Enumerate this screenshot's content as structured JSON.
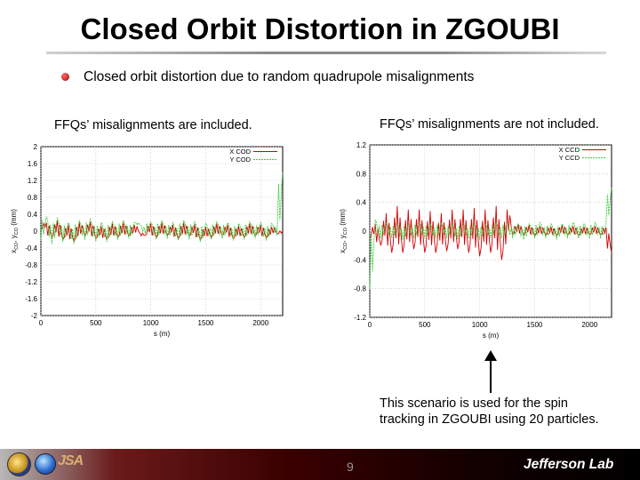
{
  "slide": {
    "title": "Closed Orbit Distortion in ZGOUBI",
    "bullet": "Closed orbit distortion due to random quadrupole misalignments",
    "left_caption": "FFQs’ misalignments are included.",
    "right_caption": "FFQs’ misalignments are not included.",
    "note_line1": "This scenario is used for the spin",
    "note_line2": "tracking in ZGOUBI using 20 particles.",
    "page_number": "9",
    "footer_logo_text": "Jefferson Lab",
    "footer_mark_text": "JSA"
  },
  "colors": {
    "x_series": "#d40000",
    "y_series": "#33cc33",
    "bullet": "#c00000",
    "footer_dark": "#1a0000"
  },
  "chart_data": [
    {
      "type": "line",
      "xlabel": "s (m)",
      "ylabel": "xCO, yCO (mm)",
      "ylabel_main": "x",
      "ylabel_sub1": "CO",
      "ylabel_sep": ", y",
      "ylabel_sub2": "CO",
      "ylabel_unit": " (mm)",
      "xlim": [
        0,
        2200
      ],
      "ylim": [
        -2,
        2
      ],
      "x_ticks": [
        0,
        500,
        1000,
        1500,
        2000
      ],
      "y_ticks": [
        "-2",
        "-1.6",
        "-1.2",
        "-0.8",
        "-0.4",
        "0",
        "0.4",
        "0.8",
        "1.2",
        "1.6",
        "2"
      ],
      "y_tick_values": [
        -2,
        -1.6,
        -1.2,
        -0.8,
        -0.4,
        0,
        0.4,
        0.8,
        1.2,
        1.6,
        2
      ],
      "legend_position": "top-right",
      "grid": true,
      "series": [
        {
          "name": "X COD",
          "x": [
            0,
            50,
            100,
            150,
            200,
            250,
            300,
            350,
            400,
            450,
            500,
            550,
            600,
            650,
            700,
            750,
            800,
            850,
            900,
            950,
            1000,
            1050,
            1100,
            1150,
            1200,
            1250,
            1300,
            1350,
            1400,
            1450,
            1500,
            1550,
            1600,
            1650,
            1700,
            1750,
            1800,
            1850,
            1900,
            1950,
            2000,
            2050,
            2100,
            2150,
            2200
          ],
          "values": [
            0.05,
            0.2,
            -0.15,
            0.25,
            -0.2,
            0.15,
            -0.25,
            0.2,
            -0.1,
            0.22,
            -0.18,
            0.12,
            -0.2,
            0.18,
            -0.15,
            0.2,
            -0.12,
            0.15,
            -0.05,
            -0.1,
            0.18,
            -0.15,
            0.2,
            -0.1,
            0.15,
            -0.18,
            0.2,
            -0.12,
            0.16,
            -0.2,
            0.1,
            -0.15,
            0.18,
            -0.1,
            0.15,
            -0.18,
            0.12,
            -0.15,
            0.18,
            -0.1,
            0.14,
            -0.16,
            0.1,
            -0.05,
            0.0
          ]
        },
        {
          "name": "Y COD",
          "x": [
            0,
            50,
            100,
            150,
            200,
            250,
            300,
            350,
            400,
            450,
            500,
            550,
            600,
            650,
            700,
            750,
            800,
            850,
            900,
            950,
            1000,
            1050,
            1100,
            1150,
            1200,
            1250,
            1300,
            1350,
            1400,
            1450,
            1500,
            1550,
            1600,
            1650,
            1700,
            1750,
            1800,
            1850,
            1900,
            1950,
            2000,
            2050,
            2100,
            2150,
            2200
          ],
          "values": [
            -0.2,
            0.35,
            -0.3,
            0.3,
            -0.25,
            0.2,
            -0.3,
            0.25,
            -0.2,
            0.28,
            -0.25,
            0.2,
            -0.25,
            0.22,
            -0.2,
            0.25,
            -0.18,
            0.2,
            0.15,
            -0.05,
            0.22,
            -0.2,
            0.25,
            -0.18,
            0.2,
            -0.22,
            0.25,
            -0.2,
            0.22,
            -0.25,
            0.18,
            -0.2,
            0.22,
            -0.18,
            0.2,
            -0.22,
            0.18,
            -0.2,
            0.22,
            -0.18,
            0.2,
            -0.22,
            0.18,
            -0.1,
            1.4
          ]
        }
      ]
    },
    {
      "type": "line",
      "xlabel": "s (m)",
      "ylabel": "xCO, yCO (mm)",
      "ylabel_main": "x",
      "ylabel_sub1": "CO",
      "ylabel_sep": ", y",
      "ylabel_sub2": "CO",
      "ylabel_unit": " (mm)",
      "xlim": [
        0,
        2200
      ],
      "ylim": [
        -1.2,
        1.2
      ],
      "x_ticks": [
        0,
        500,
        1000,
        1500,
        2000
      ],
      "y_ticks": [
        "-1.2",
        "-0.8",
        "-0.4",
        "0",
        "0.4",
        "0.8",
        "1.2"
      ],
      "y_tick_values": [
        -1.2,
        -0.8,
        -0.4,
        0,
        0.4,
        0.8,
        1.2
      ],
      "legend_position": "top-right",
      "grid": true,
      "series": [
        {
          "name": "X CCD",
          "x": [
            0,
            50,
            100,
            150,
            200,
            250,
            300,
            350,
            400,
            450,
            500,
            550,
            600,
            650,
            700,
            750,
            800,
            850,
            900,
            950,
            1000,
            1050,
            1100,
            1150,
            1200,
            1250,
            1300,
            1350,
            1400,
            1450,
            1500,
            1550,
            1600,
            1650,
            1700,
            1750,
            1800,
            1850,
            1900,
            1950,
            2000,
            2050,
            2100,
            2150,
            2200
          ],
          "values": [
            -0.1,
            0.1,
            -0.2,
            0.25,
            -0.3,
            0.35,
            -0.3,
            0.3,
            -0.25,
            0.3,
            -0.3,
            0.28,
            -0.3,
            0.25,
            -0.28,
            0.3,
            -0.25,
            0.3,
            -0.3,
            0.32,
            -0.35,
            0.3,
            -0.3,
            0.35,
            -0.4,
            0.3,
            -0.05,
            0.1,
            -0.05,
            0.08,
            -0.06,
            0.07,
            -0.05,
            0.06,
            -0.06,
            0.08,
            -0.05,
            0.07,
            -0.06,
            0.06,
            -0.05,
            0.07,
            -0.05,
            0.05,
            -0.3
          ]
        },
        {
          "name": "Y CCD",
          "x": [
            0,
            50,
            100,
            150,
            200,
            250,
            300,
            350,
            400,
            450,
            500,
            550,
            600,
            650,
            700,
            750,
            800,
            850,
            900,
            950,
            1000,
            1050,
            1100,
            1150,
            1200,
            1250,
            1300,
            1350,
            1400,
            1450,
            1500,
            1550,
            1600,
            1650,
            1700,
            1750,
            1800,
            1850,
            1900,
            1950,
            2000,
            2050,
            2100,
            2150,
            2200
          ],
          "values": [
            -0.8,
            0.15,
            -0.1,
            0.12,
            -0.1,
            0.1,
            -0.12,
            0.1,
            -0.1,
            0.12,
            -0.1,
            0.1,
            -0.1,
            0.12,
            -0.1,
            0.1,
            -0.12,
            0.1,
            -0.1,
            0.1,
            -0.12,
            0.1,
            -0.1,
            0.12,
            -0.1,
            0.12,
            -0.1,
            0.1,
            -0.12,
            0.1,
            -0.1,
            0.12,
            -0.1,
            0.1,
            -0.12,
            0.1,
            -0.1,
            0.12,
            -0.1,
            0.1,
            -0.1,
            0.12,
            -0.1,
            0.1,
            0.6
          ]
        }
      ]
    }
  ]
}
